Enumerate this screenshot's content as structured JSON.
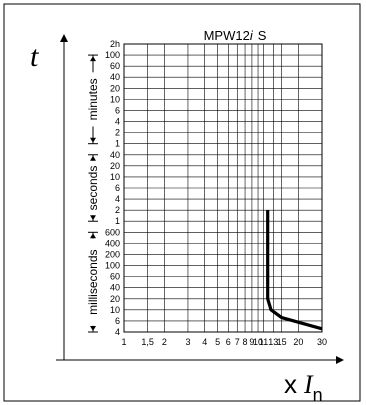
{
  "chart_data": {
    "type": "line",
    "title_main": "MPW12",
    "title_i": "i",
    "title_suffix": "S",
    "y_axis_symbol": "t",
    "x_axis_prefix": "x",
    "x_axis_symbol": "I",
    "x_axis_subscript": "n",
    "x_ticks": [
      {
        "v": 1,
        "label": "1"
      },
      {
        "v": 1.5,
        "label": "1,5"
      },
      {
        "v": 2,
        "label": "2"
      },
      {
        "v": 3,
        "label": "3"
      },
      {
        "v": 4,
        "label": "4"
      },
      {
        "v": 5,
        "label": "5"
      },
      {
        "v": 6,
        "label": "6"
      },
      {
        "v": 7,
        "label": "7"
      },
      {
        "v": 8,
        "label": "8"
      },
      {
        "v": 9,
        "label": "9"
      },
      {
        "v": 10,
        "label": "10"
      },
      {
        "v": 11,
        "label": "11"
      },
      {
        "v": 13,
        "label": "13"
      },
      {
        "v": 15,
        "label": "15"
      },
      {
        "v": 20,
        "label": "20"
      },
      {
        "v": 30,
        "label": "30"
      }
    ],
    "y_groups": [
      {
        "unit": "minutes",
        "ticks": [
          "2h",
          "100",
          "60",
          "40",
          "20",
          "10",
          "6",
          "4",
          "2",
          "1"
        ]
      },
      {
        "unit": "seconds",
        "ticks": [
          "40",
          "20",
          "10",
          "6",
          "4",
          "2",
          "1"
        ]
      },
      {
        "unit": "milliseconds",
        "ticks": [
          "600",
          "400",
          "200",
          "100",
          "60",
          "40",
          "20",
          "10",
          "6",
          "4"
        ]
      }
    ],
    "series": [
      {
        "color": "#000000",
        "points": [
          {
            "x": 11.8,
            "t": "2 s"
          },
          {
            "x": 11.8,
            "t": "20 ms"
          },
          {
            "x": 12.5,
            "t": "10 ms"
          },
          {
            "x": 15,
            "t": "7 ms"
          },
          {
            "x": 30,
            "t": "4.5 ms"
          }
        ]
      }
    ],
    "grid": true
  }
}
